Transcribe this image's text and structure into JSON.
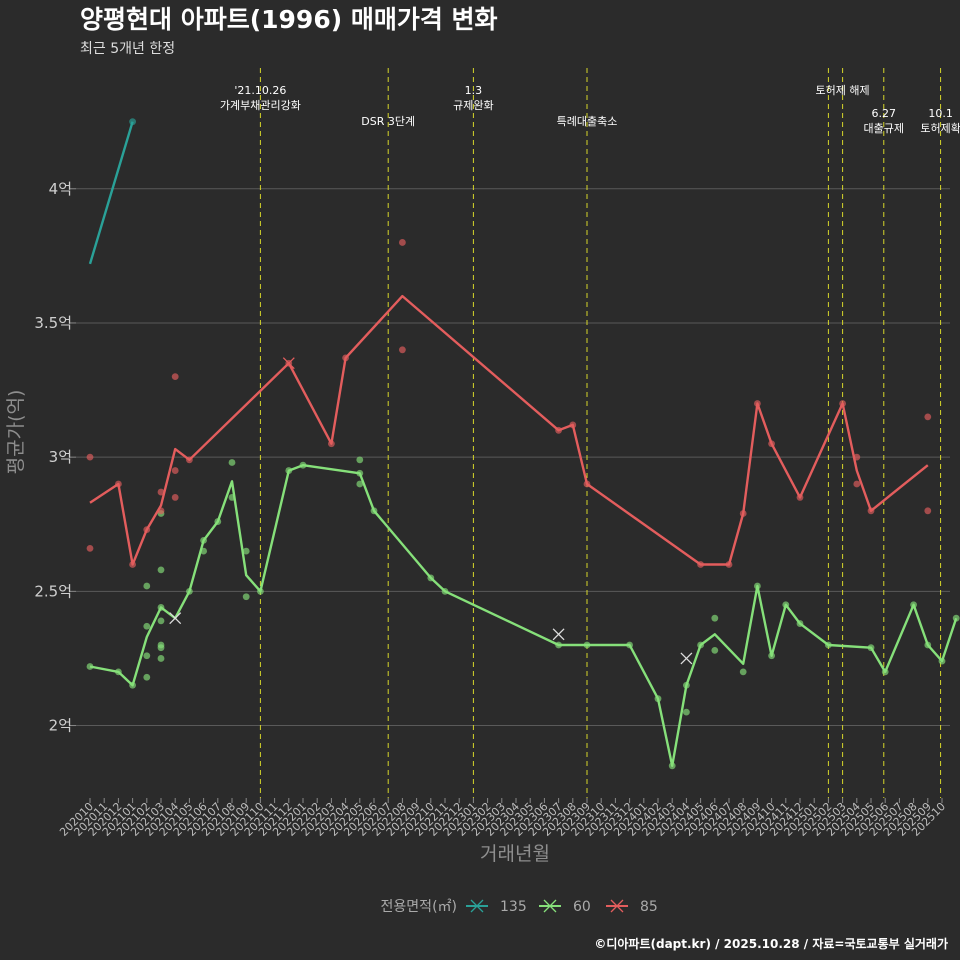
{
  "chart_data": {
    "type": "line",
    "title": "양평현대 아파트(1996) 매매가격 변화",
    "subtitle": "최근 5개년 한정",
    "xlabel": "거래년월",
    "ylabel": "평균가(억)",
    "caption": "©디아파트(dapt.kr) / 2025.10.28 / 자료=국토교통부 실거래가",
    "yticks": [
      {
        "value": 2.0,
        "label": "2억"
      },
      {
        "value": 2.5,
        "label": "2.5억"
      },
      {
        "value": 3.0,
        "label": "3억"
      },
      {
        "value": 3.5,
        "label": "3.5억"
      },
      {
        "value": 4.0,
        "label": "4억"
      }
    ],
    "ylim": [
      1.73,
      4.45
    ],
    "categories": [
      "202010",
      "202011",
      "202012",
      "202101",
      "202102",
      "202103",
      "202104",
      "202105",
      "202106",
      "202107",
      "202108",
      "202109",
      "202110",
      "202111",
      "202112",
      "202201",
      "202202",
      "202203",
      "202204",
      "202205",
      "202206",
      "202207",
      "202208",
      "202209",
      "202210",
      "202211",
      "202212",
      "202301",
      "202302",
      "202303",
      "202304",
      "202305",
      "202306",
      "202307",
      "202308",
      "202309",
      "202310",
      "202311",
      "202312",
      "202401",
      "202402",
      "202403",
      "202404",
      "202405",
      "202406",
      "202407",
      "202408",
      "202409",
      "202410",
      "202411",
      "202412",
      "202501",
      "202502",
      "202503",
      "202504",
      "202505",
      "202506",
      "202507",
      "202508",
      "202509",
      "202510"
    ],
    "legend": {
      "title": "전용면적(㎡)",
      "position": "bottom"
    },
    "series": [
      {
        "name": "135",
        "color": "#2aa198",
        "line": [
          [
            0,
            3.72
          ],
          [
            3,
            4.25
          ]
        ],
        "points": [
          [
            3,
            4.25
          ]
        ],
        "crosses": []
      },
      {
        "name": "60",
        "color": "#86e07a",
        "line": [
          [
            0,
            2.22
          ],
          [
            2,
            2.2
          ],
          [
            3,
            2.15
          ],
          [
            4,
            2.33
          ],
          [
            5,
            2.44
          ],
          [
            6,
            2.4
          ],
          [
            7,
            2.5
          ],
          [
            8,
            2.69
          ],
          [
            9,
            2.76
          ],
          [
            10,
            2.91
          ],
          [
            11,
            2.56
          ],
          [
            12,
            2.5
          ],
          [
            14,
            2.95
          ],
          [
            15,
            2.97
          ],
          [
            19,
            2.94
          ],
          [
            20,
            2.8
          ],
          [
            24,
            2.55
          ],
          [
            25,
            2.5
          ],
          [
            33,
            2.3
          ],
          [
            35,
            2.3
          ],
          [
            38,
            2.3
          ],
          [
            40,
            2.1
          ],
          [
            41,
            1.85
          ],
          [
            42,
            2.15
          ],
          [
            43,
            2.3
          ],
          [
            44,
            2.34
          ],
          [
            46,
            2.23
          ],
          [
            47,
            2.52
          ],
          [
            48,
            2.26
          ],
          [
            49,
            2.45
          ],
          [
            50,
            2.38
          ],
          [
            52,
            2.3
          ],
          [
            55,
            2.29
          ],
          [
            56,
            2.2
          ],
          [
            58,
            2.45
          ],
          [
            59,
            2.3
          ],
          [
            60,
            2.24
          ],
          [
            61,
            2.4
          ]
        ],
        "points": [
          [
            0,
            2.22
          ],
          [
            2,
            2.2
          ],
          [
            3,
            2.15
          ],
          [
            4,
            2.52
          ],
          [
            4,
            2.37
          ],
          [
            4,
            2.26
          ],
          [
            4,
            2.18
          ],
          [
            5,
            2.58
          ],
          [
            5,
            2.44
          ],
          [
            5,
            2.39
          ],
          [
            5,
            2.3
          ],
          [
            5,
            2.29
          ],
          [
            5,
            2.25
          ],
          [
            5,
            2.79
          ],
          [
            7,
            2.5
          ],
          [
            8,
            2.69
          ],
          [
            8,
            2.65
          ],
          [
            9,
            2.76
          ],
          [
            10,
            2.98
          ],
          [
            10,
            2.85
          ],
          [
            11,
            2.65
          ],
          [
            11,
            2.48
          ],
          [
            12,
            2.5
          ],
          [
            14,
            2.95
          ],
          [
            15,
            2.97
          ],
          [
            19,
            2.99
          ],
          [
            19,
            2.94
          ],
          [
            19,
            2.9
          ],
          [
            20,
            2.8
          ],
          [
            24,
            2.55
          ],
          [
            25,
            2.5
          ],
          [
            33,
            2.3
          ],
          [
            35,
            2.3
          ],
          [
            38,
            2.3
          ],
          [
            40,
            2.1
          ],
          [
            41,
            1.85
          ],
          [
            42,
            2.15
          ],
          [
            42,
            2.05
          ],
          [
            43,
            2.3
          ],
          [
            44,
            2.4
          ],
          [
            44,
            2.28
          ],
          [
            46,
            2.2
          ],
          [
            47,
            2.52
          ],
          [
            48,
            2.26
          ],
          [
            49,
            2.45
          ],
          [
            50,
            2.38
          ],
          [
            52,
            2.3
          ],
          [
            55,
            2.29
          ],
          [
            56,
            2.2
          ],
          [
            58,
            2.45
          ],
          [
            59,
            2.3
          ],
          [
            60,
            2.24
          ],
          [
            61,
            2.4
          ]
        ],
        "crosses": [
          [
            6,
            2.4
          ],
          [
            33,
            2.34
          ],
          [
            42,
            2.25
          ]
        ]
      },
      {
        "name": "85",
        "color": "#e35d5d",
        "line": [
          [
            0,
            2.83
          ],
          [
            2,
            2.9
          ],
          [
            3,
            2.6
          ],
          [
            4,
            2.73
          ],
          [
            5,
            2.82
          ],
          [
            6,
            3.03
          ],
          [
            7,
            2.99
          ],
          [
            14,
            3.35
          ],
          [
            17,
            3.05
          ],
          [
            18,
            3.37
          ],
          [
            22,
            3.6
          ],
          [
            33,
            3.1
          ],
          [
            34,
            3.12
          ],
          [
            35,
            2.9
          ],
          [
            43,
            2.6
          ],
          [
            45,
            2.6
          ],
          [
            46,
            2.79
          ],
          [
            47,
            3.2
          ],
          [
            48,
            3.05
          ],
          [
            50,
            2.85
          ],
          [
            53,
            3.2
          ],
          [
            54,
            2.95
          ],
          [
            55,
            2.8
          ],
          [
            59,
            2.97
          ]
        ],
        "points": [
          [
            0,
            3.0
          ],
          [
            0,
            2.66
          ],
          [
            2,
            2.9
          ],
          [
            3,
            2.6
          ],
          [
            4,
            2.73
          ],
          [
            5,
            2.87
          ],
          [
            5,
            2.8
          ],
          [
            6,
            3.3
          ],
          [
            6,
            2.95
          ],
          [
            6,
            2.85
          ],
          [
            7,
            2.99
          ],
          [
            14,
            3.35
          ],
          [
            17,
            3.05
          ],
          [
            18,
            3.37
          ],
          [
            22,
            3.8
          ],
          [
            22,
            3.4
          ],
          [
            33,
            3.1
          ],
          [
            34,
            3.12
          ],
          [
            35,
            2.9
          ],
          [
            43,
            2.6
          ],
          [
            45,
            2.6
          ],
          [
            46,
            2.79
          ],
          [
            47,
            3.2
          ],
          [
            48,
            3.05
          ],
          [
            50,
            2.85
          ],
          [
            53,
            3.2
          ],
          [
            54,
            3.0
          ],
          [
            54,
            2.9
          ],
          [
            55,
            2.8
          ],
          [
            59,
            3.15
          ],
          [
            59,
            2.8
          ]
        ],
        "crosses": [
          [
            14,
            3.35
          ]
        ]
      }
    ],
    "events": [
      {
        "x": 12.0,
        "lines": [
          "'21.10.26",
          "가계부채관리강화"
        ],
        "row": 0
      },
      {
        "x": 21.0,
        "lines": [
          "DSR 3단계"
        ],
        "row": 1
      },
      {
        "x": 27.0,
        "lines": [
          "1.3",
          "규제완화"
        ],
        "row": 0
      },
      {
        "x": 35.0,
        "lines": [
          "특례대출축소"
        ],
        "row": 1
      },
      {
        "x": 52.0,
        "lines": [],
        "row": 0
      },
      {
        "x": 53.0,
        "lines": [
          "토허제 해제"
        ],
        "row": 0
      },
      {
        "x": 55.9,
        "lines": [
          "6.27",
          "대출규제"
        ],
        "row": 2
      },
      {
        "x": 59.9,
        "lines": [
          "10.1",
          "토허제확"
        ],
        "row": 2
      }
    ]
  }
}
